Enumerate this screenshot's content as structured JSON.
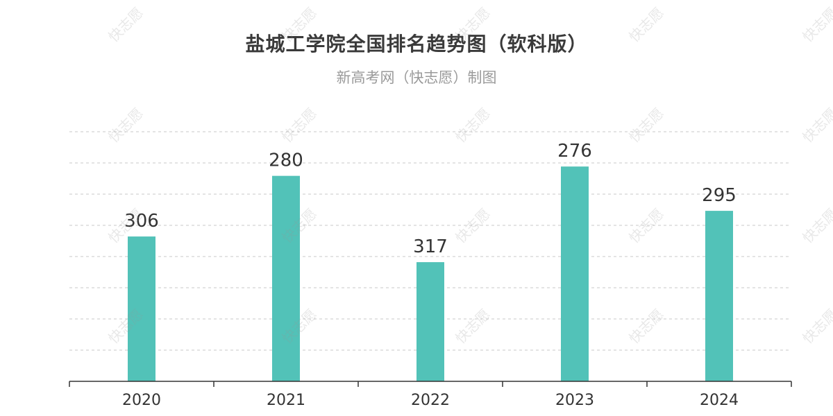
{
  "header": {
    "title": "盐城工学院全国排名趋势图（软科版）",
    "subtitle": "新高考网（快志愿）制图"
  },
  "watermark": {
    "text": "快志愿"
  },
  "colors": {
    "bar": "#52c2b8",
    "grid": "#c8c8c8",
    "axis": "#333333",
    "label": "#333333"
  },
  "chart_data": {
    "type": "bar",
    "categories": [
      "2020",
      "2021",
      "2022",
      "2023",
      "2024"
    ],
    "values": [
      306,
      280,
      317,
      276,
      295
    ],
    "title": "盐城工学院全国排名趋势图（软科版）",
    "subtitle": "新高考网（快志愿）制图",
    "xlabel": "",
    "ylabel": "",
    "grid": true,
    "legend": "none"
  }
}
